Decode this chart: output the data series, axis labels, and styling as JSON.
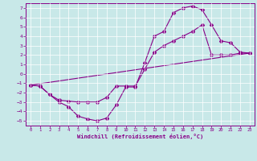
{
  "xlabel": "Windchill (Refroidissement éolien,°C)",
  "background_color": "#c8e8e8",
  "line_color": "#880088",
  "xlim": [
    -0.5,
    23.5
  ],
  "ylim": [
    -5.5,
    7.5
  ],
  "xticks": [
    0,
    1,
    2,
    3,
    4,
    5,
    6,
    7,
    8,
    9,
    10,
    11,
    12,
    13,
    14,
    15,
    16,
    17,
    18,
    19,
    20,
    21,
    22,
    23
  ],
  "yticks": [
    -5,
    -4,
    -3,
    -2,
    -1,
    0,
    1,
    2,
    3,
    4,
    5,
    6,
    7
  ],
  "line1_x": [
    0,
    1,
    2,
    3,
    4,
    5,
    6,
    7,
    8,
    9,
    10,
    11,
    12,
    13,
    14,
    15,
    16,
    17,
    18,
    19,
    20,
    21,
    22,
    23
  ],
  "line1_y": [
    -1.2,
    -1.3,
    -2.2,
    -3.0,
    -3.5,
    -4.5,
    -4.8,
    -5.0,
    -4.7,
    -3.3,
    -1.4,
    -1.4,
    1.2,
    4.0,
    4.5,
    6.5,
    7.0,
    7.2,
    6.8,
    5.2,
    3.5,
    3.3,
    2.3,
    2.2
  ],
  "line2_x": [
    0,
    1,
    2,
    3,
    4,
    5,
    6,
    7,
    8,
    9,
    10,
    11,
    12,
    13,
    14,
    15,
    16,
    17,
    18,
    19,
    20,
    21,
    22,
    23
  ],
  "line2_y": [
    -1.2,
    -1.3,
    -2.2,
    -2.8,
    -2.9,
    -3.0,
    -3.0,
    -3.0,
    -2.5,
    -1.3,
    -1.3,
    -1.3,
    0.5,
    2.3,
    3.0,
    3.5,
    4.0,
    4.5,
    5.2,
    2.0,
    2.0,
    2.0,
    2.2,
    2.2
  ],
  "line3_x": [
    0,
    23
  ],
  "line3_y": [
    -1.2,
    2.2
  ]
}
